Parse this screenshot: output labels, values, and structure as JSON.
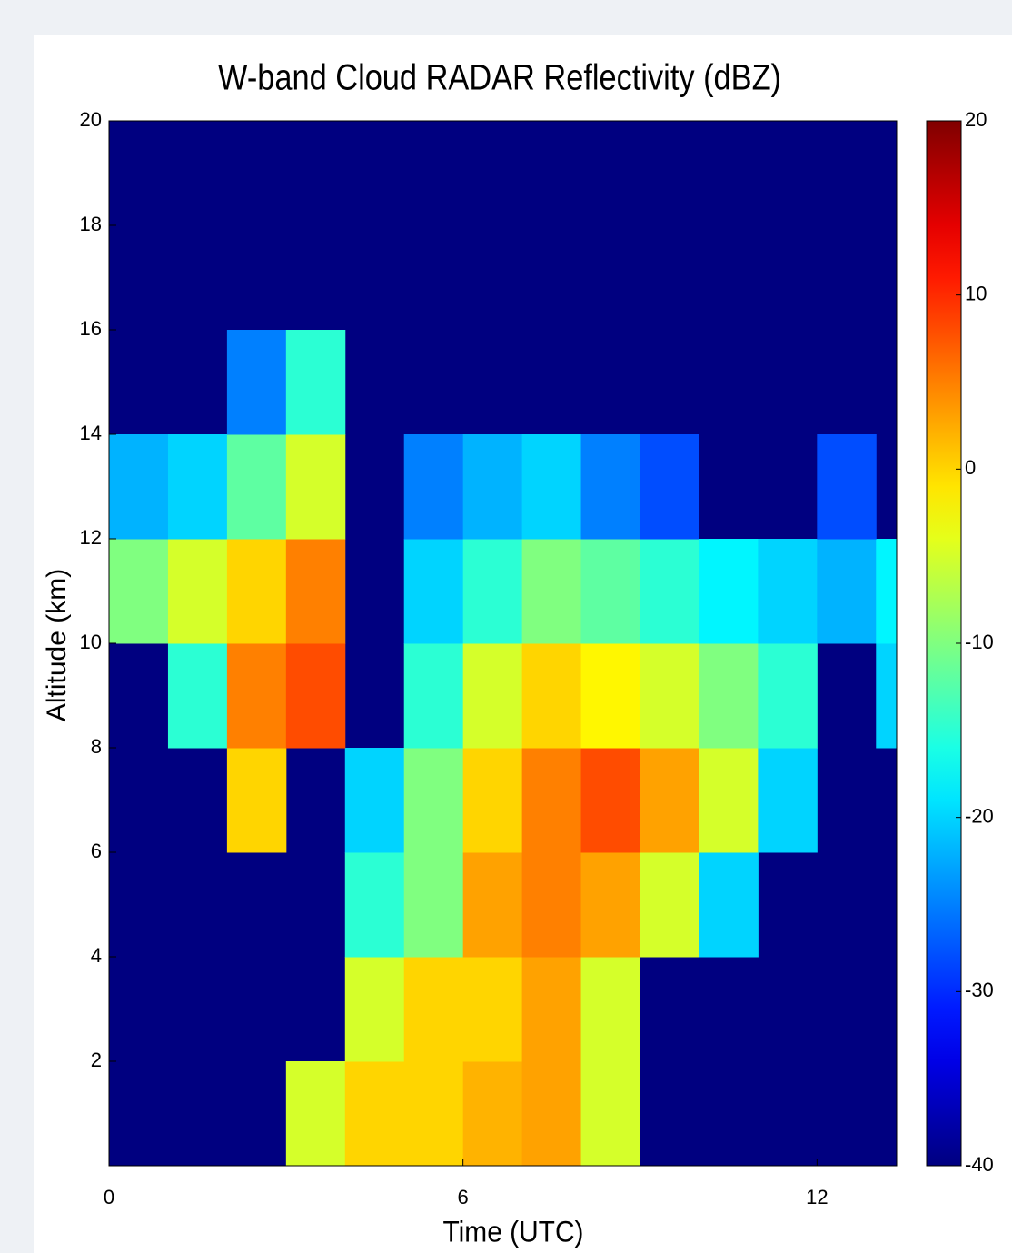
{
  "chart_data": {
    "type": "heatmap",
    "title": "W-band Cloud RADAR Reflectivity (dBZ)",
    "xlabel": "Time (UTC)",
    "ylabel": "Altitude (km)",
    "x_edges": [
      0,
      1,
      2,
      3,
      4,
      5,
      6,
      7,
      8,
      9,
      10,
      11,
      12,
      13,
      13.35
    ],
    "y_edges": [
      0,
      2,
      4,
      6,
      8,
      10,
      12,
      14,
      16,
      18,
      20
    ],
    "values": [
      [
        null,
        null,
        null,
        -5,
        0,
        0,
        2,
        3,
        -5,
        null,
        null,
        null,
        null,
        null
      ],
      [
        null,
        null,
        null,
        null,
        -5,
        0,
        0,
        3,
        -5,
        null,
        null,
        null,
        null,
        null
      ],
      [
        null,
        null,
        null,
        null,
        -15,
        -10,
        3,
        5,
        3,
        -5,
        -20,
        null,
        null,
        null
      ],
      [
        null,
        null,
        0,
        null,
        -20,
        -10,
        0,
        5,
        8,
        3,
        -5,
        -20,
        null,
        null
      ],
      [
        null,
        -15,
        5,
        8,
        null,
        -15,
        -5,
        0,
        -2,
        -5,
        -10,
        -15,
        null,
        -20
      ],
      [
        -10,
        -5,
        0,
        5,
        null,
        -20,
        -15,
        -10,
        -12,
        -15,
        -18,
        -20,
        -22,
        -18
      ],
      [
        -22,
        -20,
        -12,
        -5,
        null,
        -25,
        -22,
        -20,
        -25,
        -28,
        null,
        null,
        -28,
        null
      ],
      [
        null,
        null,
        -25,
        -15,
        null,
        null,
        null,
        null,
        null,
        null,
        null,
        null,
        null,
        null
      ],
      [
        null,
        null,
        null,
        null,
        null,
        null,
        null,
        null,
        null,
        null,
        null,
        null,
        null,
        null
      ],
      [
        null,
        null,
        null,
        null,
        null,
        null,
        null,
        null,
        null,
        null,
        null,
        null,
        null,
        null
      ]
    ],
    "xlim": [
      0,
      13.35
    ],
    "xticks": [
      0,
      6,
      12
    ],
    "ylim": [
      0,
      20
    ],
    "yticks": [
      2,
      4,
      6,
      8,
      10,
      12,
      14,
      16,
      18,
      20
    ],
    "colormap": "jet",
    "clim": [
      -40,
      20
    ],
    "cticks": [
      -40,
      -30,
      -20,
      -10,
      0,
      10,
      20
    ]
  }
}
